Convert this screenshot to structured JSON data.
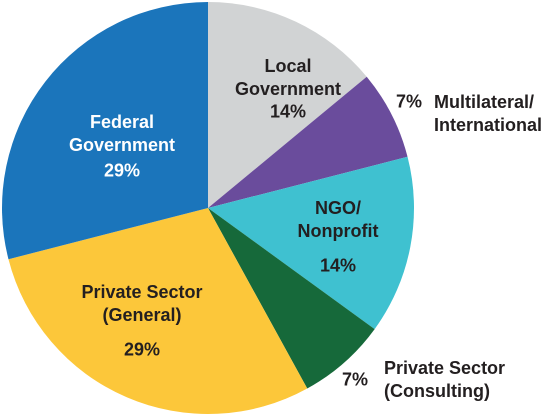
{
  "chart_data": {
    "type": "pie",
    "categories": [
      "Local Government",
      "Multilateral/ International",
      "NGO/ Nonprofit",
      "Private Sector (Consulting)",
      "Private Sector (General)",
      "Federal Government"
    ],
    "values": [
      14,
      7,
      14,
      7,
      29,
      29
    ],
    "value_labels": [
      "14%",
      "7%",
      "14%",
      "7%",
      "29%",
      "29%"
    ],
    "colors": [
      "#d1d3d4",
      "#6a4c9c",
      "#3fc1d0",
      "#16693a",
      "#fcc73a",
      "#1b75bb"
    ]
  }
}
